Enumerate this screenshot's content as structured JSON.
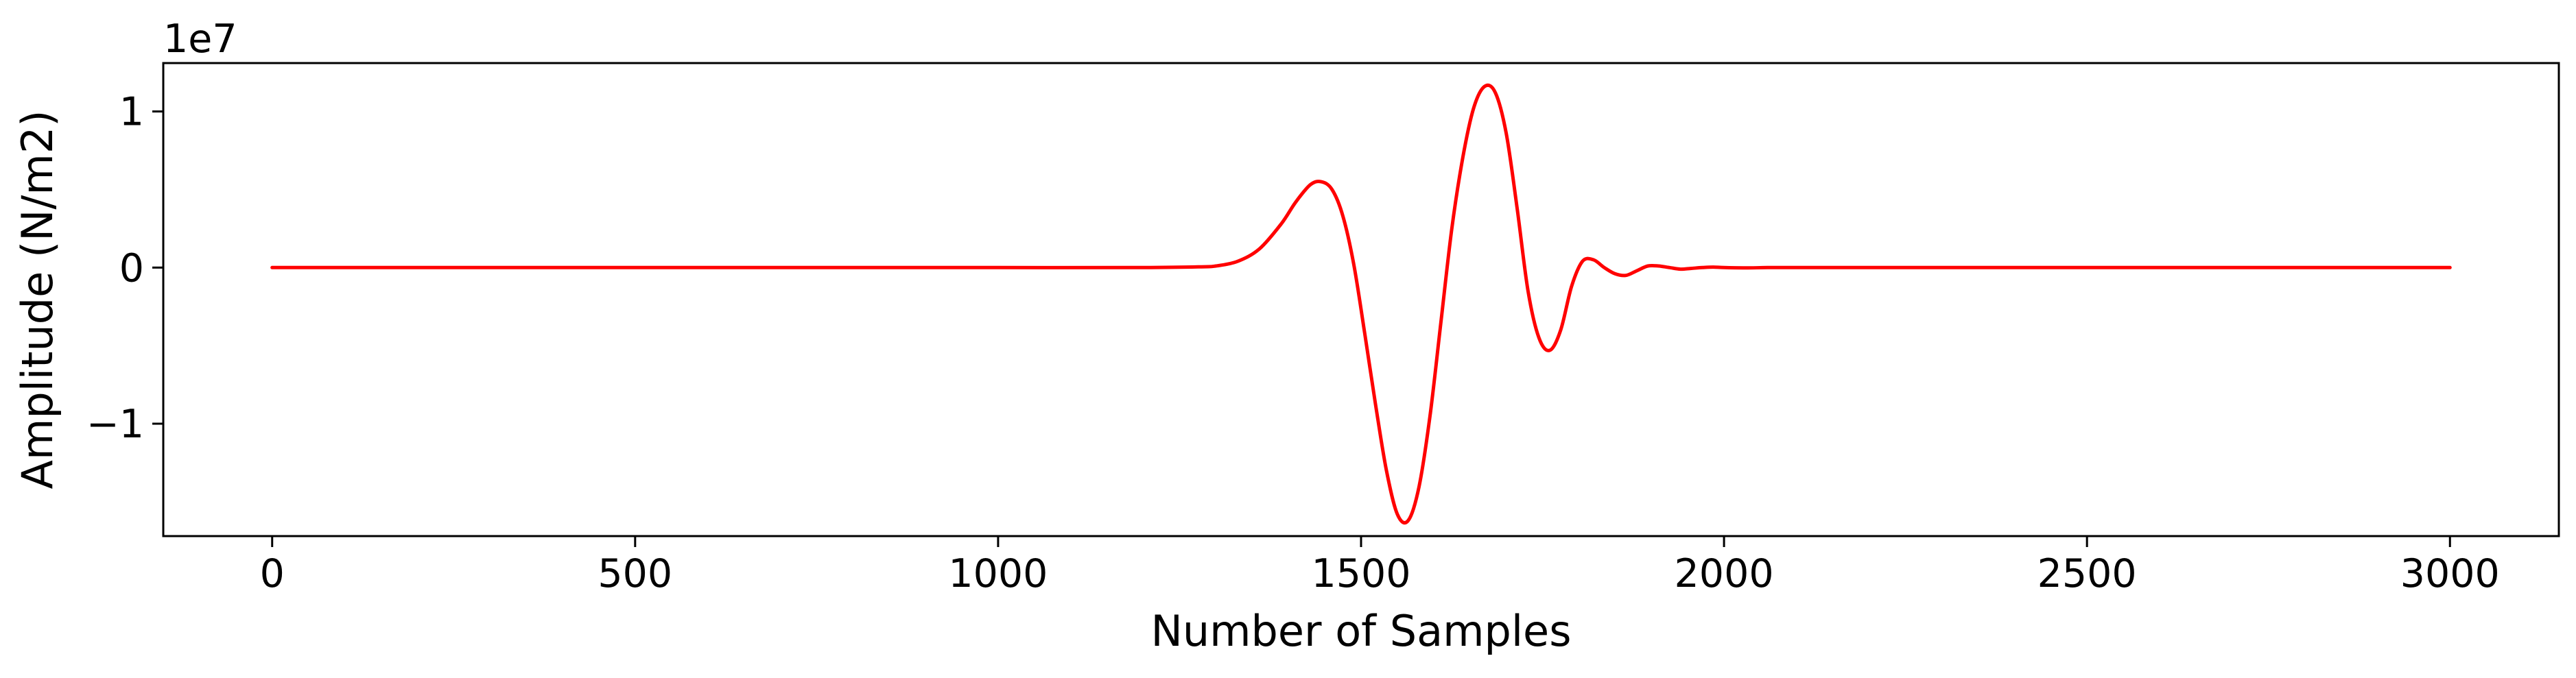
{
  "chart_data": {
    "type": "line",
    "xlabel": "Number of Samples",
    "ylabel": "Amplitude (N/m2)",
    "y_offset_label": "1e7",
    "xlim": [
      -150,
      3150
    ],
    "ylim": [
      -1.72,
      1.31
    ],
    "y_scale_factor": 10000000,
    "xticks": [
      0,
      500,
      1000,
      1500,
      2000,
      2500,
      3000
    ],
    "xtick_labels": [
      "0",
      "500",
      "1000",
      "1500",
      "2000",
      "2500",
      "3000"
    ],
    "yticks": [
      1,
      0,
      -1
    ],
    "ytick_labels": [
      "1",
      "0",
      "−1"
    ],
    "grid": false,
    "series": [
      {
        "color": "#ff0000",
        "x": [
          0,
          200,
          400,
          600,
          800,
          1000,
          1200,
          1280,
          1300,
          1330,
          1360,
          1390,
          1410,
          1430,
          1445,
          1460,
          1475,
          1490,
          1505,
          1520,
          1535,
          1550,
          1565,
          1580,
          1595,
          1610,
          1625,
          1640,
          1655,
          1670,
          1685,
          1700,
          1715,
          1730,
          1745,
          1760,
          1775,
          1790,
          1805,
          1820,
          1835,
          1850,
          1865,
          1880,
          1895,
          1910,
          1925,
          1940,
          1955,
          1970,
          1985,
          2000,
          2030,
          2060,
          2100,
          2200,
          2400,
          2600,
          2800,
          3000
        ],
        "y": [
          0,
          0,
          0,
          0,
          0,
          0,
          0,
          0.005,
          0.01,
          0.04,
          0.12,
          0.28,
          0.42,
          0.53,
          0.55,
          0.5,
          0.33,
          0.02,
          -0.42,
          -0.88,
          -1.3,
          -1.58,
          -1.62,
          -1.4,
          -0.95,
          -0.35,
          0.25,
          0.7,
          1.02,
          1.16,
          1.12,
          0.86,
          0.38,
          -0.15,
          -0.45,
          -0.53,
          -0.4,
          -0.12,
          0.04,
          0.05,
          0,
          -0.04,
          -0.05,
          -0.02,
          0.01,
          0.01,
          0,
          -0.01,
          -0.005,
          0,
          0.003,
          0,
          -0.002,
          0,
          0,
          0,
          0,
          0,
          0,
          0
        ]
      }
    ]
  }
}
